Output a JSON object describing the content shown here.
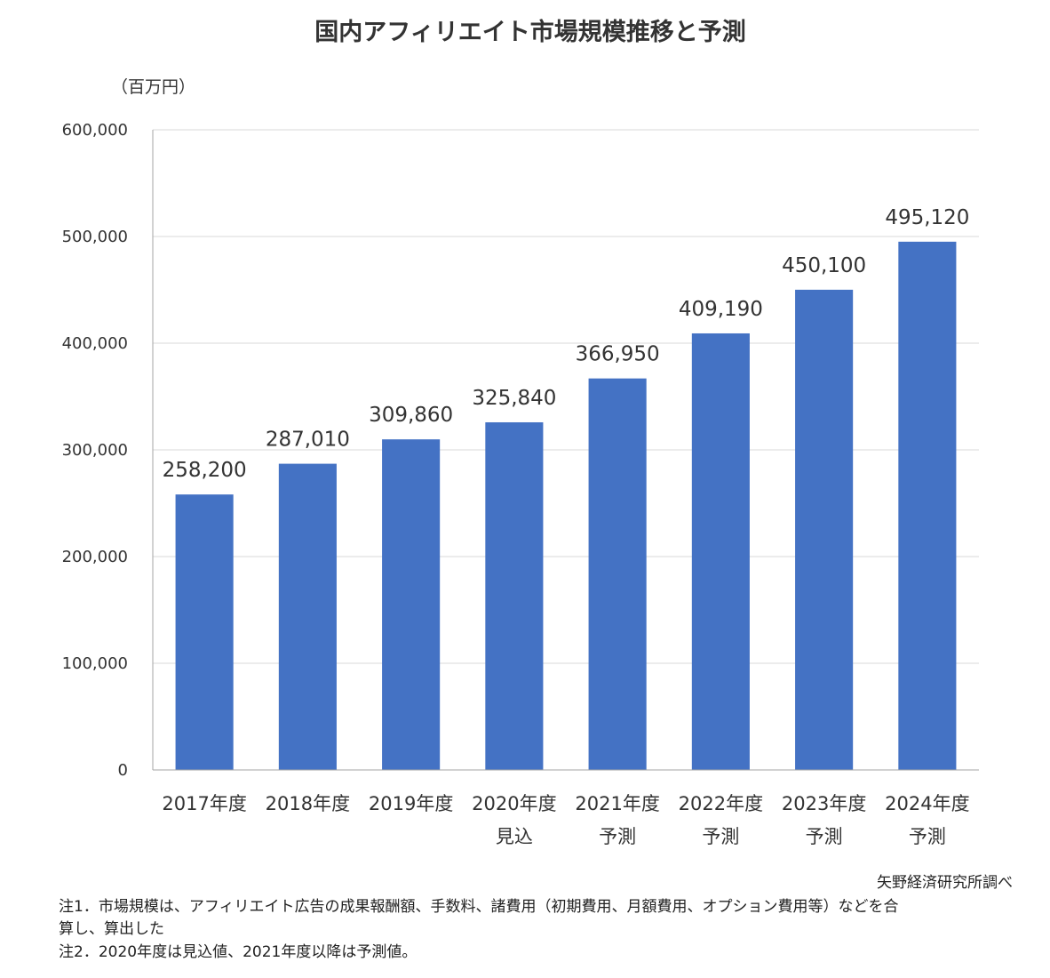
{
  "chart_data": {
    "type": "bar",
    "title": "国内アフィリエイト市場規模推移と予測",
    "ylabel": "（百万円）",
    "xlabel": "",
    "ylim": [
      0,
      600000
    ],
    "yticks": [
      0,
      100000,
      200000,
      300000,
      400000,
      500000,
      600000
    ],
    "ytick_labels": [
      "0",
      "100,000",
      "200,000",
      "300,000",
      "400,000",
      "500,000",
      "600,000"
    ],
    "grid": true,
    "categories": [
      [
        "2017年度"
      ],
      [
        "2018年度"
      ],
      [
        "2019年度"
      ],
      [
        "2020年度",
        "見込"
      ],
      [
        "2021年度",
        "予測"
      ],
      [
        "2022年度",
        "予測"
      ],
      [
        "2023年度",
        "予測"
      ],
      [
        "2024年度",
        "予測"
      ]
    ],
    "values": [
      258200,
      287010,
      309860,
      325840,
      366950,
      409190,
      450100,
      495120
    ],
    "value_labels": [
      "258,200",
      "287,010",
      "309,860",
      "325,840",
      "366,950",
      "409,190",
      "450,100",
      "495,120"
    ],
    "bar_color": "#4472C4",
    "grid_color": "#D9D9D9",
    "axis_color": "#A6A6A6"
  },
  "source": "矢野経済研究所調べ",
  "notes": {
    "note1_line1": "注1．市場規模は、アフィリエイト広告の成果報酬額、手数料、諸費用（初期費用、月額費用、オプション費用等）などを合",
    "note1_line2": "算し、算出した",
    "note2": "注2．2020年度は見込値、2021年度以降は予測値。"
  }
}
